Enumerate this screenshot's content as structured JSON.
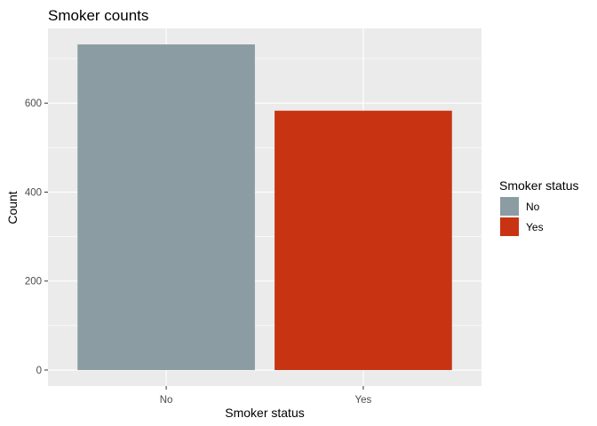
{
  "chart_data": {
    "type": "bar",
    "title": "Smoker counts",
    "xlabel": "Smoker status",
    "ylabel": "Count",
    "categories": [
      "No",
      "Yes"
    ],
    "values": [
      732,
      583
    ],
    "colors": [
      "#8b9ca2",
      "#c83312"
    ],
    "ylim": [
      -36,
      768
    ],
    "yticks": [
      0,
      200,
      400,
      600
    ],
    "ytick_labels": [
      "0",
      "200",
      "400",
      "600"
    ],
    "panel_background": "#ebebeb",
    "grid": true,
    "legend": {
      "title": "Smoker status",
      "position": "right",
      "entries": [
        {
          "label": "No",
          "color": "#8b9ca2"
        },
        {
          "label": "Yes",
          "color": "#c83312"
        }
      ]
    }
  }
}
